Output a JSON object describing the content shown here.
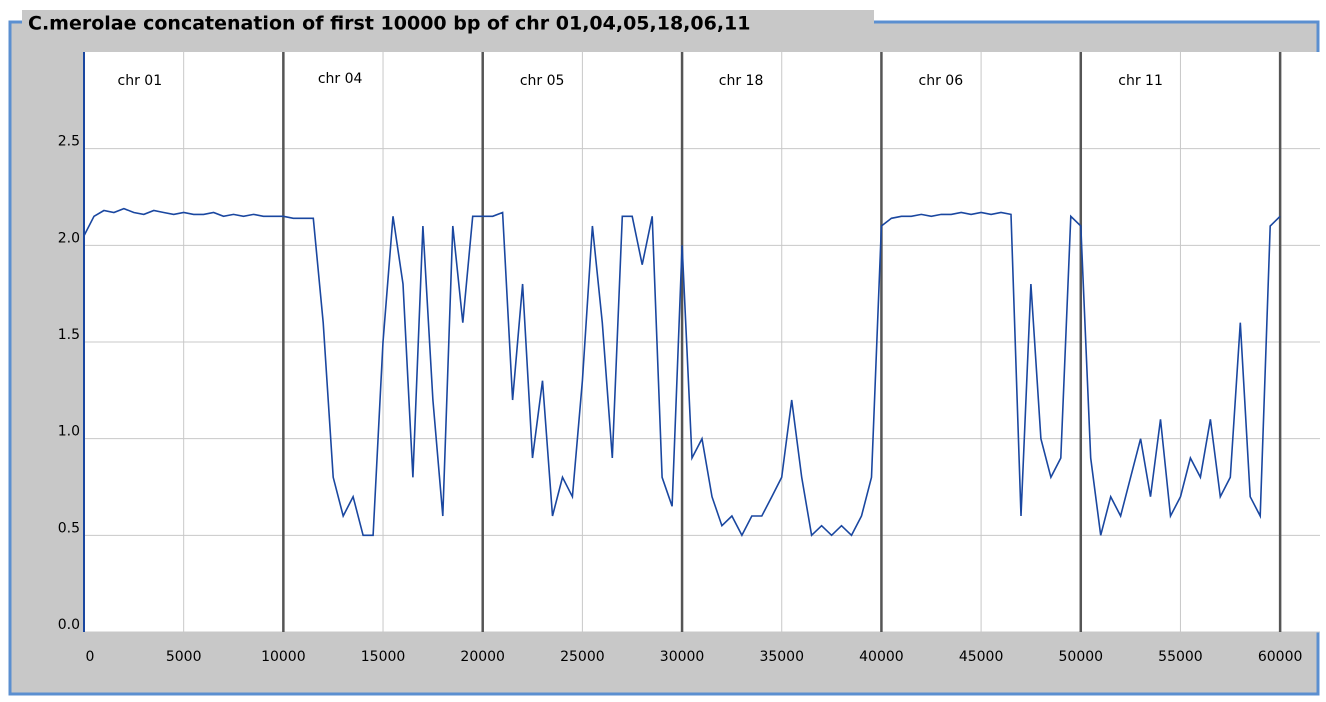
{
  "chart_data": {
    "type": "line",
    "title": "C.merolae concatenation of first 10000 bp of chr 01,04,05,18,06,11",
    "x": [
      0,
      500,
      1000,
      1500,
      2000,
      2500,
      3000,
      3500,
      4000,
      4500,
      5000,
      5500,
      6000,
      6500,
      7000,
      7500,
      8000,
      8500,
      9000,
      9500,
      10000,
      10500,
      11000,
      11500,
      12000,
      12500,
      13000,
      13500,
      14000,
      14500,
      15000,
      15500,
      16000,
      16500,
      17000,
      17500,
      18000,
      18500,
      19000,
      19500,
      20000,
      20500,
      21000,
      21500,
      22000,
      22500,
      23000,
      23500,
      24000,
      24500,
      25000,
      25500,
      26000,
      26500,
      27000,
      27500,
      28000,
      28500,
      29000,
      29500,
      30000,
      30500,
      31000,
      31500,
      32000,
      32500,
      33000,
      33500,
      34000,
      34500,
      35000,
      35500,
      36000,
      36500,
      37000,
      37500,
      38000,
      38500,
      39000,
      39500,
      40000,
      40500,
      41000,
      41500,
      42000,
      42500,
      43000,
      43500,
      44000,
      44500,
      45000,
      45500,
      46000,
      46500,
      47000,
      47500,
      48000,
      48500,
      49000,
      49500,
      50000,
      50500,
      51000,
      51500,
      52000,
      52500,
      53000,
      53500,
      54000,
      54500,
      55000,
      55500,
      56000,
      56500,
      57000,
      57500,
      58000,
      58500,
      59000,
      59500,
      60000
    ],
    "series": [
      {
        "color": "#1a47a0",
        "values": [
          2.05,
          2.15,
          2.18,
          2.17,
          2.19,
          2.17,
          2.16,
          2.18,
          2.17,
          2.16,
          2.17,
          2.16,
          2.16,
          2.17,
          2.15,
          2.16,
          2.15,
          2.16,
          2.15,
          2.15,
          2.15,
          2.14,
          2.14,
          2.14,
          1.6,
          0.8,
          0.6,
          0.7,
          0.5,
          0.5,
          1.5,
          2.15,
          1.8,
          0.8,
          2.1,
          1.2,
          0.6,
          2.1,
          1.6,
          2.15,
          2.15,
          2.15,
          2.17,
          1.2,
          1.8,
          0.9,
          1.3,
          0.6,
          0.8,
          0.7,
          1.3,
          2.1,
          1.6,
          0.9,
          2.15,
          2.15,
          1.9,
          2.15,
          0.8,
          0.65,
          2.0,
          0.9,
          1.0,
          0.7,
          0.55,
          0.6,
          0.5,
          0.6,
          0.6,
          0.7,
          0.8,
          1.2,
          0.8,
          0.5,
          0.55,
          0.5,
          0.55,
          0.5,
          0.6,
          0.8,
          2.1,
          2.14,
          2.15,
          2.15,
          2.16,
          2.15,
          2.16,
          2.16,
          2.17,
          2.16,
          2.17,
          2.16,
          2.17,
          2.16,
          0.6,
          1.8,
          1.0,
          0.8,
          0.9,
          2.15,
          2.1,
          0.9,
          0.5,
          0.7,
          0.6,
          0.8,
          1.0,
          0.7,
          1.1,
          0.6,
          0.7,
          0.9,
          0.8,
          1.1,
          0.7,
          0.8,
          1.6,
          0.7,
          0.6,
          2.1,
          2.15
        ]
      }
    ],
    "xlim": [
      0,
      62000
    ],
    "ylim": [
      0,
      3
    ],
    "xticks": [
      0,
      5000,
      10000,
      15000,
      20000,
      25000,
      30000,
      35000,
      40000,
      45000,
      50000,
      55000,
      60000
    ],
    "yticks": [
      {
        "value": 0,
        "label": "0.0"
      },
      {
        "value": 0.5,
        "label": "0.5"
      },
      {
        "value": 1,
        "label": "1.0"
      },
      {
        "value": 1.5,
        "label": "1.5"
      },
      {
        "value": 2,
        "label": "2.0"
      },
      {
        "value": 2.5,
        "label": "2.5"
      }
    ],
    "boundaries": [
      10000,
      20000,
      30000,
      40000,
      50000,
      60000
    ],
    "annotations": [
      {
        "text": "chr 01",
        "x": 2800,
        "y": 2.85
      },
      {
        "text": "chr 04",
        "x": 12850,
        "y": 2.86
      },
      {
        "text": "chr 05",
        "x": 22980,
        "y": 2.85
      },
      {
        "text": "chr 18",
        "x": 32960,
        "y": 2.85
      },
      {
        "text": "chr 06",
        "x": 42980,
        "y": 2.85
      },
      {
        "text": "chr 11",
        "x": 53000,
        "y": 2.85
      }
    ],
    "grid": true
  }
}
